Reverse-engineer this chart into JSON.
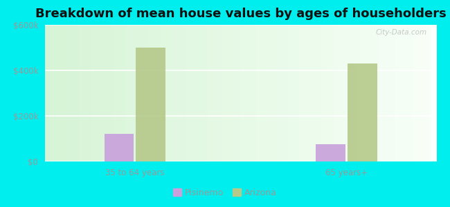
{
  "title": "Breakdown of mean house values by ages of householders",
  "categories": [
    "35 to 64 years",
    "65 years+"
  ],
  "pisinemo_values": [
    120000,
    75000
  ],
  "arizona_values": [
    500000,
    430000
  ],
  "pisinemo_color": "#c9a0dc",
  "arizona_color": "#b5c98a",
  "ylim": [
    0,
    600000
  ],
  "ytick_labels": [
    "$0",
    "$200k",
    "$400k",
    "$600k"
  ],
  "ytick_values": [
    0,
    200000,
    400000,
    600000
  ],
  "background_color": "#00eeee",
  "legend_labels": [
    "Pisinemo",
    "Arizona"
  ],
  "bar_width": 0.28,
  "title_fontsize": 13,
  "watermark": "City-Data.com"
}
